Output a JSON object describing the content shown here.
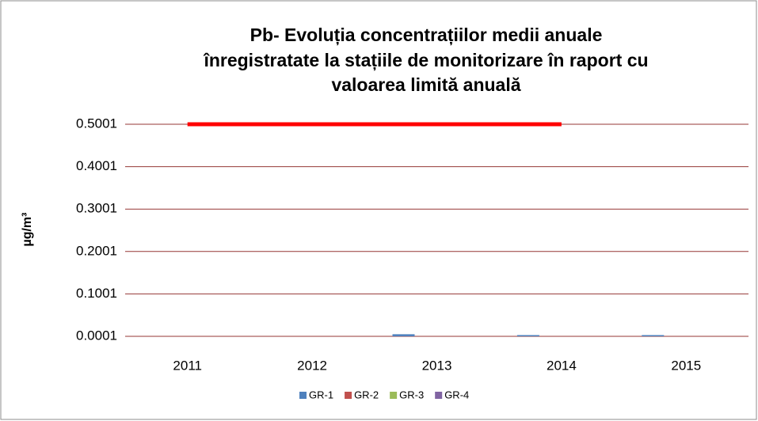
{
  "chart_data": {
    "type": "bar",
    "title": [
      "Pb- Evoluția concentrațiilor medii anuale",
      "înregistratate la stațiile de monitorizare în raport cu",
      "valoarea limită anuală"
    ],
    "ylabel": "µg/m³",
    "categories": [
      "2011",
      "2012",
      "2013",
      "2014",
      "2015"
    ],
    "series": [
      {
        "name": "GR-1",
        "color": "#4f81bd",
        "values": [
          null,
          null,
          0.005,
          0.003,
          0.003
        ]
      },
      {
        "name": "GR-2",
        "color": "#c0504d",
        "values": [
          null,
          null,
          null,
          null,
          null
        ]
      },
      {
        "name": "GR-3",
        "color": "#9bbb59",
        "values": [
          null,
          null,
          null,
          null,
          null
        ]
      },
      {
        "name": "GR-4",
        "color": "#8064a2",
        "values": [
          null,
          null,
          null,
          null,
          null
        ]
      },
      {
        "type": "line",
        "color": "#ff0000",
        "values": [
          0.5,
          0.5,
          0.5,
          0.5,
          null
        ]
      }
    ],
    "ylim": [
      0.0001,
      0.5001
    ],
    "yticks": [
      0.0001,
      0.1001,
      0.2001,
      0.3001,
      0.4001,
      0.5001
    ],
    "grid": true,
    "grid_color": "#953735",
    "legend": "bottom"
  }
}
